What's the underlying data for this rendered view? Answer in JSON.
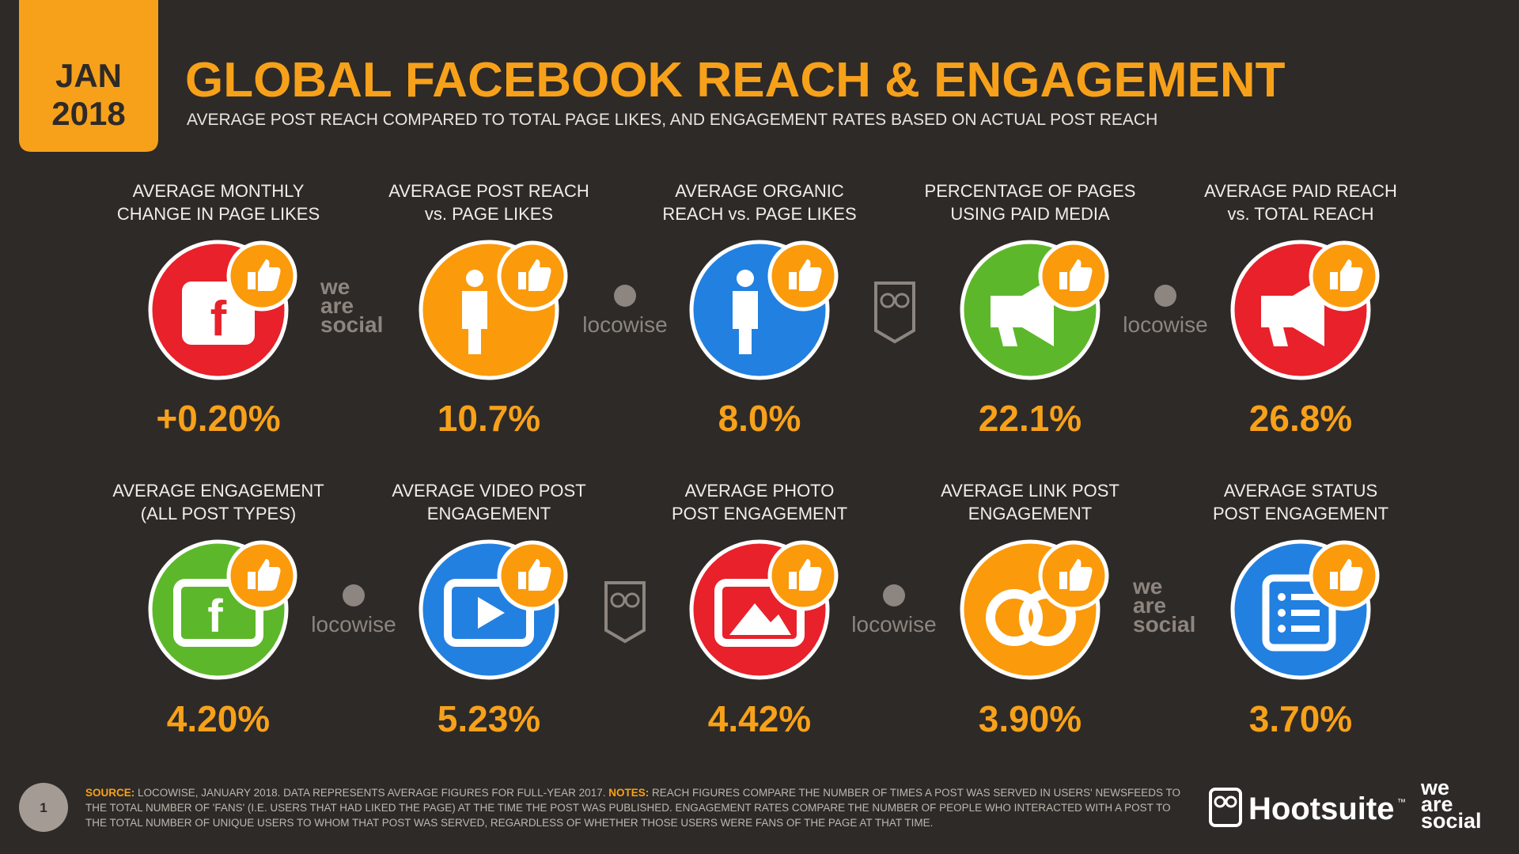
{
  "header": {
    "tab_month": "JAN",
    "tab_year": "2018",
    "title": "GLOBAL FACEBOOK REACH & ENGAGEMENT",
    "subtitle": "AVERAGE POST REACH COMPARED TO TOTAL PAGE LIKES, AND ENGAGEMENT RATES BASED ON ACTUAL POST REACH"
  },
  "stats": [
    {
      "label_lines": [
        "AVERAGE MONTHLY",
        "CHANGE IN PAGE LIKES"
      ],
      "value": "+0.20%"
    },
    {
      "label_lines": [
        "AVERAGE POST REACH",
        "vs. PAGE LIKES"
      ],
      "value": "10.7%"
    },
    {
      "label_lines": [
        "AVERAGE ORGANIC",
        "REACH vs. PAGE LIKES"
      ],
      "value": "8.0%"
    },
    {
      "label_lines": [
        "PERCENTAGE OF PAGES",
        "USING PAID MEDIA"
      ],
      "value": "22.1%"
    },
    {
      "label_lines": [
        "AVERAGE PAID REACH",
        "vs. TOTAL REACH"
      ],
      "value": "26.8%"
    },
    {
      "label_lines": [
        "AVERAGE ENGAGEMENT",
        "(ALL POST TYPES)"
      ],
      "value": "4.20%"
    },
    {
      "label_lines": [
        "AVERAGE VIDEO POST",
        "ENGAGEMENT"
      ],
      "value": "5.23%"
    },
    {
      "label_lines": [
        "AVERAGE PHOTO",
        "POST ENGAGEMENT"
      ],
      "value": "4.42%"
    },
    {
      "label_lines": [
        "AVERAGE LINK POST",
        "ENGAGEMENT"
      ],
      "value": "3.90%"
    },
    {
      "label_lines": [
        "AVERAGE STATUS",
        "POST ENGAGEMENT"
      ],
      "value": "3.70%"
    }
  ],
  "watermarks": [
    "we are social",
    "locowise",
    "locowise",
    "locowise",
    "locowise",
    "we are social"
  ],
  "footer": {
    "page_number": "1",
    "source_label": "SOURCE:",
    "source_text": "LOCOWISE, JANUARY 2018. DATA REPRESENTS AVERAGE FIGURES FOR FULL-YEAR 2017.",
    "notes_label": "NOTES:",
    "notes_text": "REACH FIGURES COMPARE THE NUMBER OF TIMES A POST WAS SERVED IN USERS' NEWSFEEDS TO THE TOTAL NUMBER OF 'FANS' (I.E. USERS THAT HAD LIKED THE PAGE) AT THE TIME THE POST WAS PUBLISHED. ENGAGEMENT RATES COMPARE THE NUMBER OF PEOPLE WHO INTERACTED WITH A POST TO THE TOTAL NUMBER OF UNIQUE USERS TO WHOM THAT POST WAS SERVED, REGARDLESS OF WHETHER THOSE USERS WERE FANS OF THE PAGE AT THAT TIME.",
    "brand": "Hootsuite",
    "brand_mark": "™",
    "partner": "we are social"
  }
}
